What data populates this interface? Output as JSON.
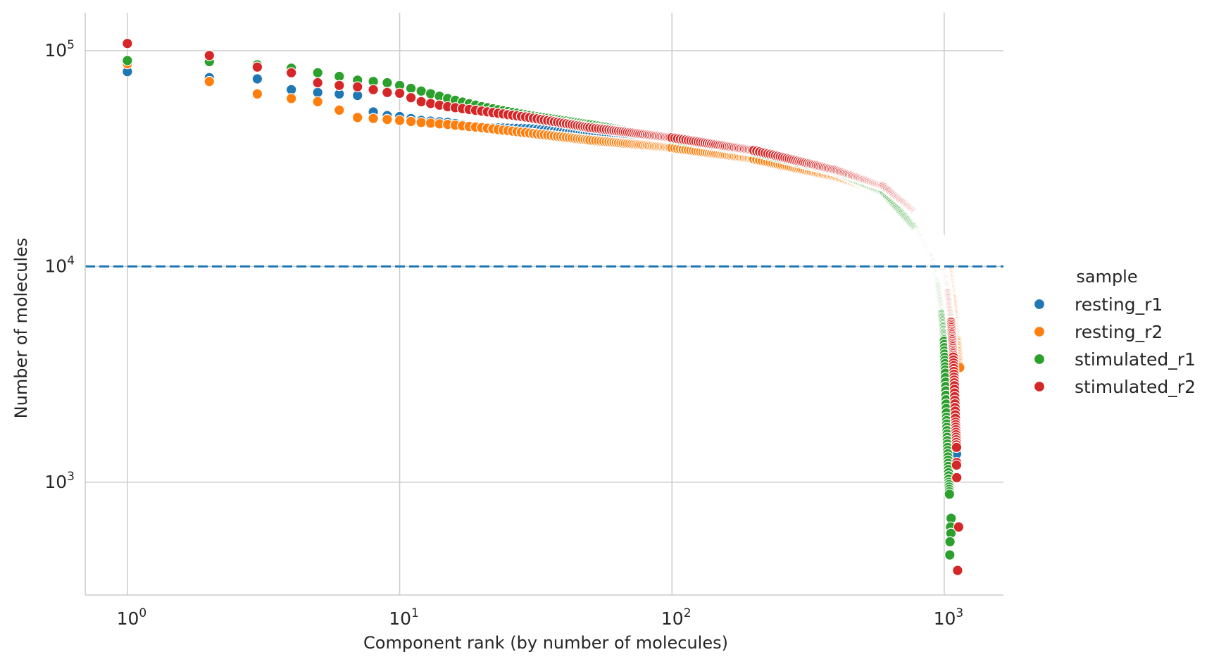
{
  "chart_data": {
    "type": "scatter",
    "title": "",
    "xlabel": "Component rank (by number of molecules)",
    "ylabel": "Number of molecules",
    "xscale": "log",
    "yscale": "log",
    "xlim": [
      0.7,
      1650
    ],
    "ylim": [
      300,
      150000
    ],
    "x_ticks": [
      1,
      10,
      100,
      1000
    ],
    "y_ticks": [
      1000,
      10000,
      100000
    ],
    "x_tick_labels": [
      {
        "base": "10",
        "exp": "0"
      },
      {
        "base": "10",
        "exp": "1"
      },
      {
        "base": "10",
        "exp": "2"
      },
      {
        "base": "10",
        "exp": "3"
      }
    ],
    "y_tick_labels": [
      {
        "base": "10",
        "exp": "3"
      },
      {
        "base": "10",
        "exp": "4"
      },
      {
        "base": "10",
        "exp": "5"
      }
    ],
    "grid": true,
    "threshold": {
      "y": 10000,
      "color": "#1f77b4",
      "style": "dashed"
    },
    "legend": {
      "title": "sample",
      "placement": "right",
      "entries": [
        "resting_r1",
        "resting_r2",
        "stimulated_r1",
        "stimulated_r2"
      ]
    },
    "series": [
      {
        "name": "resting_r1",
        "color": "#1f77b4",
        "knots": [
          [
            1,
            80000
          ],
          [
            2,
            75000
          ],
          [
            3,
            74000
          ],
          [
            4,
            66000
          ],
          [
            5,
            64000
          ],
          [
            6,
            63000
          ],
          [
            7,
            62000
          ],
          [
            8,
            52000
          ],
          [
            9,
            50000
          ],
          [
            10,
            49500
          ],
          [
            12,
            47500
          ],
          [
            15,
            46500
          ],
          [
            20,
            44000
          ],
          [
            30,
            43500
          ],
          [
            50,
            41000
          ],
          [
            100,
            38000
          ],
          [
            200,
            34000
          ],
          [
            400,
            28000
          ],
          [
            600,
            22500
          ],
          [
            800,
            16500
          ],
          [
            950,
            11000
          ],
          [
            1000,
            8000
          ],
          [
            1030,
            6000
          ],
          [
            1060,
            4500
          ],
          [
            1080,
            3200
          ],
          [
            1095,
            2200
          ],
          [
            1105,
            1600
          ],
          [
            1110,
            1350
          ]
        ],
        "outliers": []
      },
      {
        "name": "resting_r2",
        "color": "#ff7f0e",
        "knots": [
          [
            1,
            87000
          ],
          [
            2,
            72000
          ],
          [
            3,
            63000
          ],
          [
            4,
            60000
          ],
          [
            5,
            58000
          ],
          [
            6,
            53000
          ],
          [
            7,
            49000
          ],
          [
            8,
            48500
          ],
          [
            9,
            48000
          ],
          [
            10,
            47500
          ],
          [
            12,
            46500
          ],
          [
            15,
            45500
          ],
          [
            20,
            44000
          ],
          [
            30,
            41500
          ],
          [
            50,
            38500
          ],
          [
            100,
            35500
          ],
          [
            200,
            31500
          ],
          [
            400,
            26000
          ],
          [
            600,
            22000
          ],
          [
            800,
            17500
          ],
          [
            950,
            14000
          ],
          [
            1000,
            12000
          ],
          [
            1050,
            9500
          ],
          [
            1080,
            7000
          ],
          [
            1100,
            5500
          ],
          [
            1120,
            4500
          ],
          [
            1140,
            3400
          ]
        ],
        "outliers": []
      },
      {
        "name": "stimulated_r1",
        "color": "#2ca02c",
        "knots": [
          [
            1,
            90000
          ],
          [
            2,
            89000
          ],
          [
            3,
            86000
          ],
          [
            4,
            83000
          ],
          [
            5,
            79000
          ],
          [
            6,
            76000
          ],
          [
            7,
            73000
          ],
          [
            8,
            72000
          ],
          [
            9,
            71000
          ],
          [
            10,
            69000
          ],
          [
            12,
            65000
          ],
          [
            15,
            60000
          ],
          [
            20,
            55000
          ],
          [
            30,
            50000
          ],
          [
            50,
            45500
          ],
          [
            100,
            39000
          ],
          [
            200,
            34000
          ],
          [
            400,
            27500
          ],
          [
            600,
            22000
          ],
          [
            800,
            14500
          ],
          [
            900,
            11000
          ],
          [
            950,
            8000
          ],
          [
            980,
            6000
          ],
          [
            1000,
            4500
          ],
          [
            1010,
            3200
          ],
          [
            1020,
            2000
          ],
          [
            1030,
            1400
          ],
          [
            1040,
            1000
          ],
          [
            1045,
            880
          ]
        ],
        "outliers": [
          [
            1060,
            680
          ],
          [
            1055,
            620
          ],
          [
            1058,
            580
          ],
          [
            1050,
            530
          ],
          [
            1048,
            460
          ]
        ]
      },
      {
        "name": "stimulated_r2",
        "color": "#d62728",
        "knots": [
          [
            1,
            108000
          ],
          [
            2,
            95000
          ],
          [
            3,
            84000
          ],
          [
            4,
            79000
          ],
          [
            5,
            71000
          ],
          [
            6,
            69000
          ],
          [
            7,
            68000
          ],
          [
            8,
            66000
          ],
          [
            9,
            64000
          ],
          [
            10,
            63500
          ],
          [
            12,
            58000
          ],
          [
            15,
            55000
          ],
          [
            20,
            52500
          ],
          [
            30,
            49000
          ],
          [
            50,
            44000
          ],
          [
            100,
            39500
          ],
          [
            200,
            34500
          ],
          [
            400,
            28000
          ],
          [
            600,
            23500
          ],
          [
            800,
            17500
          ],
          [
            900,
            14000
          ],
          [
            950,
            11500
          ],
          [
            1000,
            9500
          ],
          [
            1030,
            7500
          ],
          [
            1060,
            5500
          ],
          [
            1080,
            3800
          ],
          [
            1090,
            2800
          ],
          [
            1100,
            1900
          ],
          [
            1110,
            1450
          ],
          [
            1112,
            1050
          ]
        ],
        "outliers": [
          [
            1110,
            1200
          ],
          [
            1130,
            620
          ],
          [
            1120,
            390
          ]
        ]
      }
    ]
  }
}
